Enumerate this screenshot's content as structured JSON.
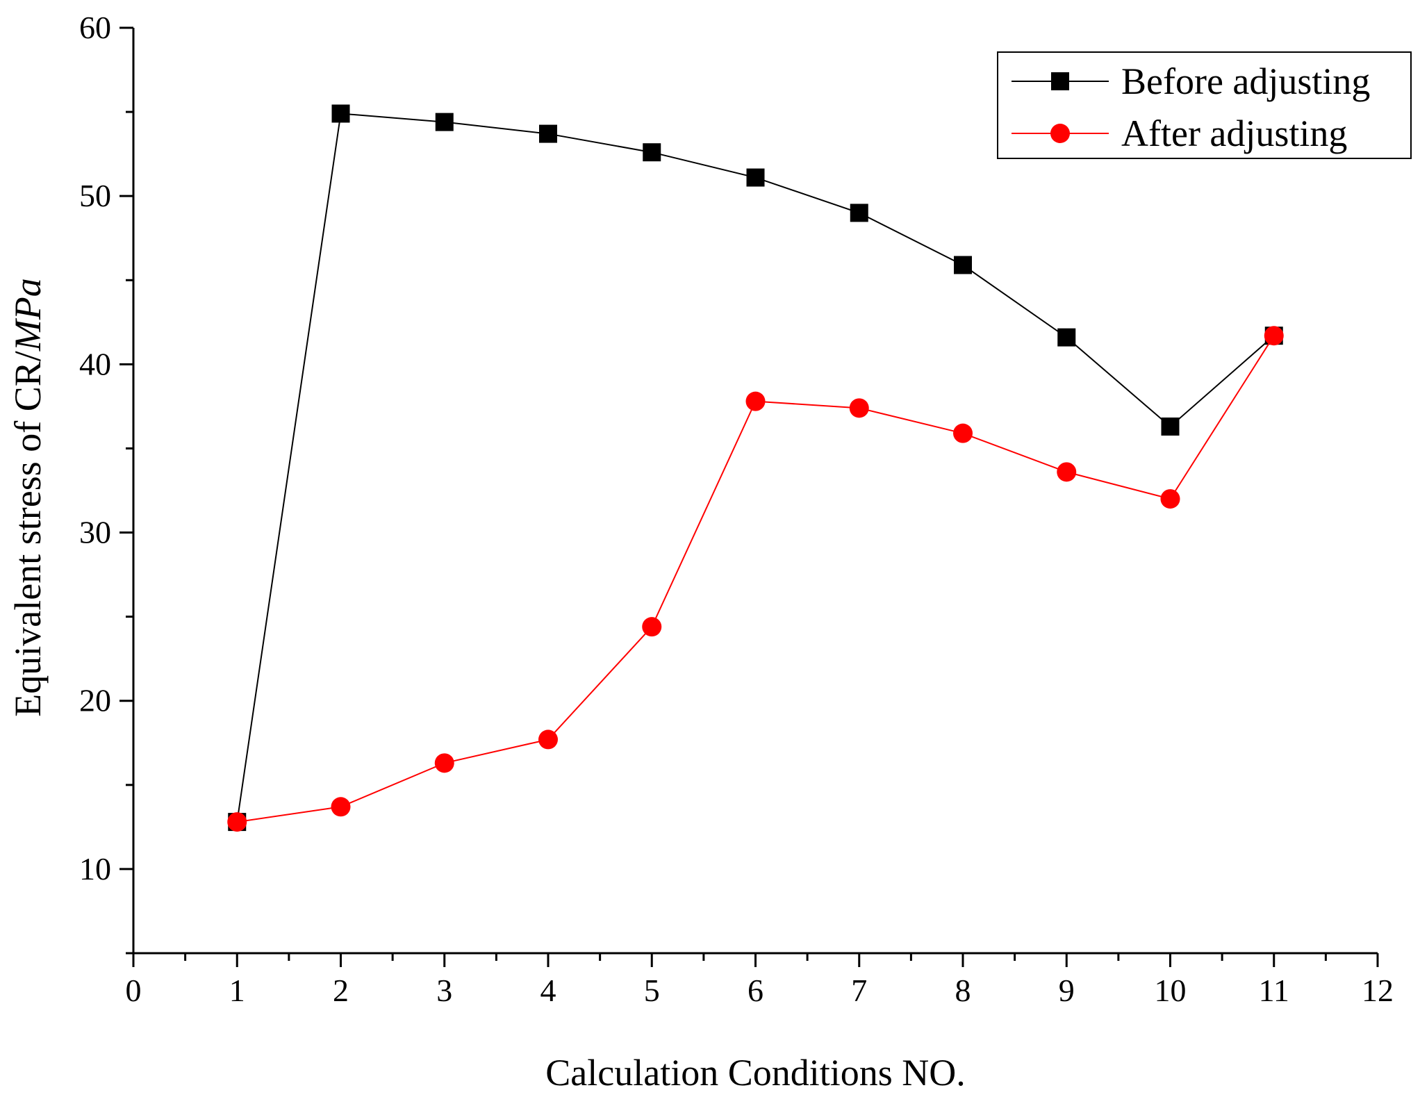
{
  "chart_data": {
    "type": "line",
    "title": "",
    "xlabel": "Calculation Conditions NO.",
    "ylabel": {
      "prefix": "Equivalent stress of CR/",
      "unit": "MPa"
    },
    "xlim": [
      0,
      12
    ],
    "ylim": [
      5,
      60
    ],
    "x_ticks": [
      0,
      1,
      2,
      3,
      4,
      5,
      6,
      7,
      8,
      9,
      10,
      11,
      12
    ],
    "y_ticks": [
      10,
      20,
      30,
      40,
      50,
      60
    ],
    "legend_position": "top-right",
    "grid": false,
    "x": [
      1,
      2,
      3,
      4,
      5,
      6,
      7,
      8,
      9,
      10,
      11
    ],
    "series": [
      {
        "name": "Before adjusting",
        "color": "#000000",
        "marker": "square",
        "values": [
          12.8,
          54.9,
          54.4,
          53.7,
          52.6,
          51.1,
          49.0,
          45.9,
          41.6,
          36.3,
          41.7
        ]
      },
      {
        "name": "After adjusting",
        "color": "#ff0000",
        "marker": "circle",
        "values": [
          12.8,
          13.7,
          16.3,
          17.7,
          24.4,
          37.8,
          37.4,
          35.9,
          33.6,
          32.0,
          41.7
        ]
      }
    ]
  }
}
